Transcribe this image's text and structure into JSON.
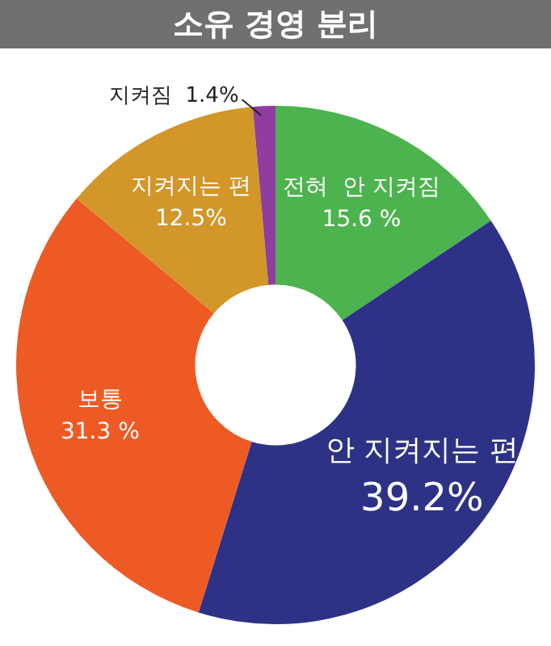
{
  "chart_data": {
    "type": "donut",
    "title": "소유 경영 분리",
    "categories": [
      "전혀  안 지켜짐",
      "안 지켜지는 편",
      "보통",
      "지켜지는 편",
      "지켜짐"
    ],
    "values": [
      15.6,
      39.2,
      31.3,
      12.5,
      1.4
    ],
    "value_labels": [
      "15.6 %",
      "39.2%",
      "31.3 %",
      "12.5%",
      "1.4%"
    ],
    "colors": [
      "#4db34f",
      "#2e3286",
      "#ee5a24",
      "#d29629",
      "#8f3d9f"
    ],
    "legend": false
  }
}
